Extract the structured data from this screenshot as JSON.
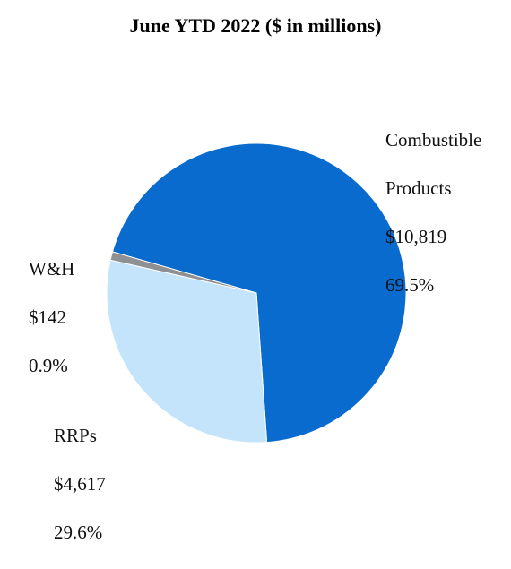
{
  "chart_data": {
    "type": "pie",
    "title": "June YTD 2022 ($ in millions)",
    "slices": [
      {
        "name": "Combustible Products",
        "value_label": "$10,819",
        "percent_label": "69.5%",
        "value": 10819,
        "color": "#0a6bcf"
      },
      {
        "name": "RRPs",
        "value_label": "$4,617",
        "percent_label": "29.6%",
        "value": 4617,
        "color": "#c4e4fb"
      },
      {
        "name": "W&H",
        "value_label": "$142",
        "percent_label": "0.9%",
        "value": 142,
        "color": "#8f9093"
      }
    ]
  },
  "labels": {
    "combustible": {
      "name_line1": "Combustible",
      "name_line2": "Products"
    },
    "wh": {
      "name": "W&H"
    },
    "rrp": {
      "name": "RRPs"
    }
  }
}
